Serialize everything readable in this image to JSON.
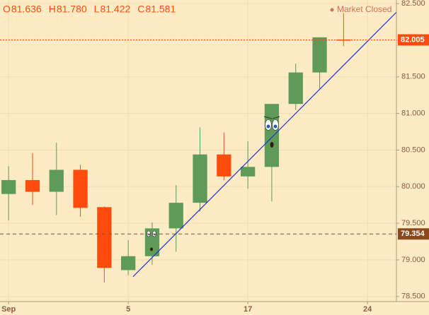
{
  "chart_data": {
    "type": "candlestick",
    "ohlc_readout": [
      {
        "label": "O",
        "value": "81.636"
      },
      {
        "label": "H",
        "value": "81.780"
      },
      {
        "label": "L",
        "value": "81.422"
      },
      {
        "label": "C",
        "value": "81.581"
      }
    ],
    "status": "Market Closed",
    "open": [
      79.9,
      80.09,
      79.93,
      80.23,
      79.72,
      78.86,
      79.05,
      79.43,
      79.78,
      80.44,
      80.14,
      80.27,
      81.13,
      81.56,
      82.01
    ],
    "high": [
      80.28,
      80.46,
      80.6,
      80.3,
      79.73,
      79.27,
      79.51,
      80.02,
      80.81,
      80.74,
      80.62,
      81.13,
      81.68,
      82.04,
      82.37
    ],
    "low": [
      79.54,
      79.75,
      79.61,
      79.59,
      78.69,
      78.79,
      78.93,
      79.11,
      79.66,
      80.09,
      79.97,
      79.8,
      81.05,
      81.34,
      81.92
    ],
    "close": [
      80.09,
      79.93,
      80.23,
      79.71,
      78.89,
      79.05,
      79.43,
      79.78,
      80.44,
      80.14,
      80.27,
      81.13,
      81.56,
      82.04,
      82.0
    ],
    "up_color": "#5e9a58",
    "down_color": "#ff4c0c",
    "xlim": [
      -0.36,
      16.21
    ],
    "xticks": [
      {
        "value": 0,
        "label": "Sep"
      },
      5,
      {
        "value": 10,
        "label": "17"
      },
      {
        "value": 15,
        "label": "24"
      }
    ],
    "ylim": [
      78.43,
      82.55
    ],
    "yticks": [
      {
        "value": 78.5,
        "label": "78.500"
      },
      {
        "value": 79,
        "label": "79.000"
      },
      {
        "value": 79.5,
        "label": "79.500"
      },
      {
        "value": 80,
        "label": "80.000"
      },
      {
        "value": 80.5,
        "label": "80.500"
      },
      {
        "value": 81,
        "label": "81.000"
      },
      {
        "value": 81.5,
        "label": "81.500"
      },
      {
        "value": 82,
        "label": "82.000"
      },
      {
        "value": 82.5,
        "label": "82.500"
      }
    ],
    "price_lines": [
      {
        "value": 82.005,
        "color": "#ff4c0c",
        "dash": "2 2"
      },
      {
        "value": 79.354,
        "color": "#8a4a1e",
        "dash": "5 4"
      }
    ],
    "trendline": {
      "color": "#1f2fd0",
      "x": [
        5.2,
        16.2
      ],
      "y": [
        78.77,
        82.38
      ]
    },
    "grid": true
  }
}
